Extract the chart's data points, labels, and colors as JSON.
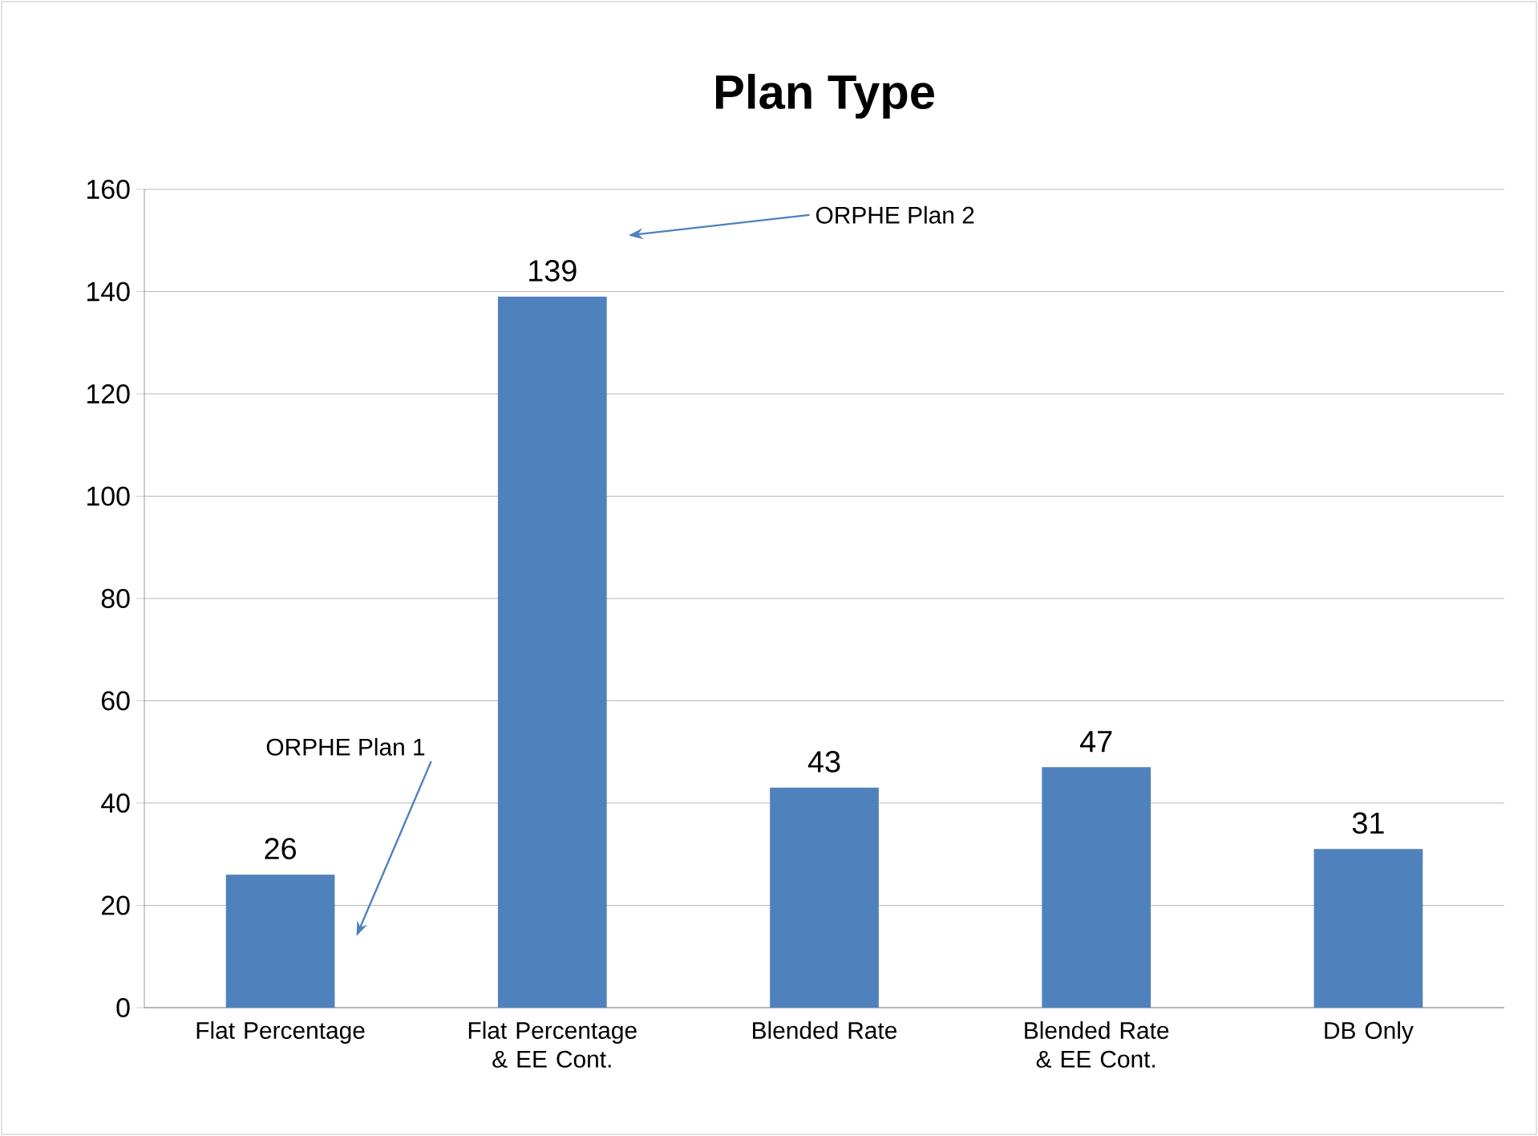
{
  "chart_data": {
    "type": "bar",
    "title": "Plan Type",
    "categories": [
      "Flat Percentage",
      "Flat Percentage & EE Cont.",
      "Blended Rate",
      "Blended Rate & EE Cont.",
      "DB Only"
    ],
    "values": [
      26,
      139,
      43,
      47,
      31
    ],
    "color": "#4f81bd",
    "ylim": [
      0,
      160
    ],
    "yticks": [
      0,
      20,
      40,
      60,
      80,
      100,
      120,
      140,
      160
    ],
    "grid": "y",
    "data_labels": true,
    "annotations": [
      "ORPHE Plan 1",
      "ORPHE Plan 2"
    ]
  }
}
